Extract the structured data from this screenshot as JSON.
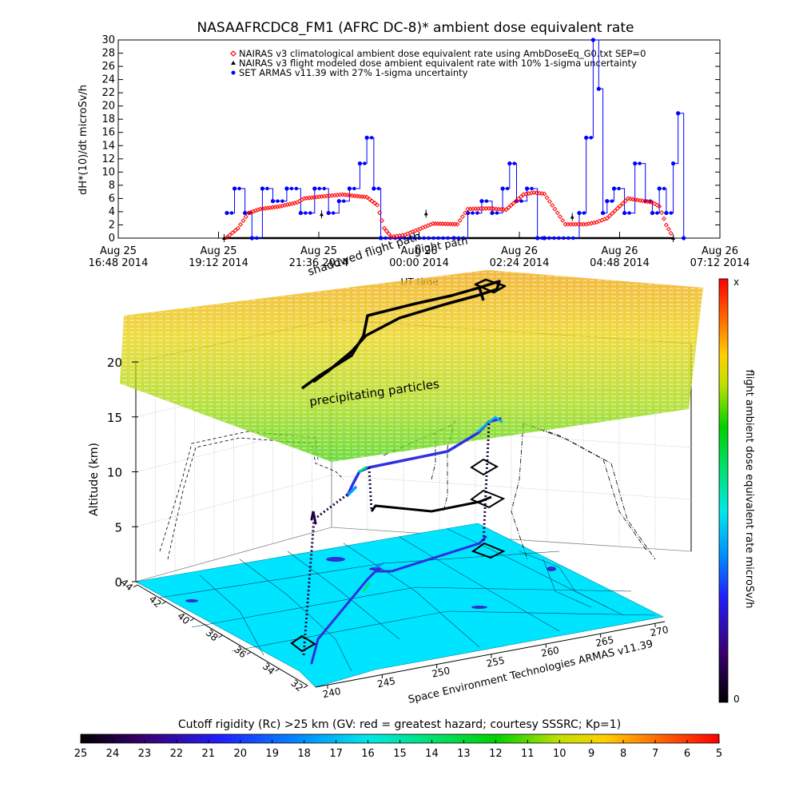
{
  "top_chart": {
    "title": "NASAAFRCDC8_FM1 (AFRC DC-8)* ambient dose equivalent rate",
    "ylabel": "dH*(10)/dt microSv/h",
    "xlabel": "UT time",
    "y_ticks": [
      "0",
      "2",
      "4",
      "6",
      "8",
      "10",
      "12",
      "14",
      "16",
      "18",
      "20",
      "22",
      "24",
      "26",
      "28",
      "30"
    ],
    "x_ticks": [
      {
        "l1": "Aug 25",
        "l2": "16:48 2014"
      },
      {
        "l1": "Aug 25",
        "l2": "19:12 2014"
      },
      {
        "l1": "Aug 25",
        "l2": "21:36 2014"
      },
      {
        "l1": "Aug 26",
        "l2": "00:00 2014"
      },
      {
        "l1": "Aug 26",
        "l2": "02:24 2014"
      },
      {
        "l1": "Aug 26",
        "l2": "04:48 2014"
      },
      {
        "l1": "Aug 26",
        "l2": "07:12 2014"
      }
    ],
    "legend": [
      {
        "label": "NAIRAS v3 climatological ambient dose equivalent rate using AmbDoseEq_G0.txt SEP=0",
        "color": "#ff0000",
        "marker": "diamond"
      },
      {
        "label": "NAIRAS v3 flight modeled dose ambient equivalent rate with 10% 1-sigma uncertainty",
        "color": "#000000",
        "marker": "triangle"
      },
      {
        "label": "SET ARMAS v11.39 with 27% 1-sigma uncertainty",
        "color": "#0000ff",
        "marker": "circle"
      }
    ]
  },
  "chart_data": [
    {
      "type": "scatter",
      "title": "NASAAFRCDC8_FM1 (AFRC DC-8)* ambient dose equivalent rate",
      "xlabel": "UT time",
      "ylabel": "dH*(10)/dt microSv/h",
      "xlim": [
        "2014-08-25 16:48",
        "2014-08-26 07:12"
      ],
      "ylim": [
        0,
        30
      ],
      "legend_position": "top-right",
      "series": [
        {
          "name": "NAIRAS v3 climatological ambient dose equivalent rate using AmbDoseEq_G0.txt SEP=0",
          "color": "#ff0000",
          "x": [
            "2014-08-25 19:24",
            "2014-08-25 19:40",
            "2014-08-25 19:55",
            "2014-08-25 20:12",
            "2014-08-25 20:40",
            "2014-08-25 21:05",
            "2014-08-25 21:15",
            "2014-08-25 21:40",
            "2014-08-25 22:10",
            "2014-08-25 22:45",
            "2014-08-25 23:00",
            "2014-08-25 23:10",
            "2014-08-25 23:20",
            "2014-08-25 23:40",
            "2014-08-26 00:20",
            "2014-08-26 00:55",
            "2014-08-26 01:10",
            "2014-08-26 01:40",
            "2014-08-26 02:05",
            "2014-08-26 02:30",
            "2014-08-26 02:45",
            "2014-08-26 03:00",
            "2014-08-26 03:30",
            "2014-08-26 04:00",
            "2014-08-26 04:15",
            "2014-08-26 04:30",
            "2014-08-26 05:00",
            "2014-08-26 05:35",
            "2014-08-26 05:45",
            "2014-08-26 05:55",
            "2014-08-26 06:05"
          ],
          "y": [
            0.1,
            1.5,
            3.8,
            4.4,
            4.8,
            5.4,
            6.0,
            6.3,
            6.6,
            6.2,
            5.0,
            1.5,
            0.2,
            0.5,
            2.2,
            2.1,
            4.4,
            4.5,
            4.3,
            6.6,
            6.9,
            6.7,
            2.1,
            2.1,
            2.4,
            3.0,
            6.0,
            5.4,
            4.8,
            2.0,
            0.1
          ]
        },
        {
          "name": "NAIRAS v3 flight modeled dose ambient equivalent rate with 10% 1-sigma uncertainty",
          "color": "#000000",
          "x": [
            "2014-08-25 19:20",
            "2014-08-25 21:40",
            "2014-08-26 00:10",
            "2014-08-26 03:40",
            "2014-08-26 06:05"
          ],
          "y": [
            0.0,
            3.6,
            3.7,
            3.2,
            0.0
          ]
        },
        {
          "name": "SET ARMAS v11.39 with 27% 1-sigma uncertainty",
          "color": "#0000ff",
          "x": [
            "2014-08-25 19:24",
            "2014-08-25 19:35",
            "2014-08-25 19:50",
            "2014-08-25 20:00",
            "2014-08-25 20:15",
            "2014-08-25 20:30",
            "2014-08-25 20:50",
            "2014-08-25 21:10",
            "2014-08-25 21:30",
            "2014-08-25 21:50",
            "2014-08-25 22:05",
            "2014-08-25 22:20",
            "2014-08-25 22:35",
            "2014-08-25 22:45",
            "2014-08-25 22:55",
            "2014-08-25 23:05",
            "2014-08-26 00:50",
            "2014-08-26 01:10",
            "2014-08-26 01:30",
            "2014-08-26 01:45",
            "2014-08-26 02:00",
            "2014-08-26 02:10",
            "2014-08-26 02:20",
            "2014-08-26 02:35",
            "2014-08-26 02:50",
            "2014-08-26 03:00",
            "2014-08-26 03:50",
            "2014-08-26 04:00",
            "2014-08-26 04:10",
            "2014-08-26 04:18",
            "2014-08-26 04:24",
            "2014-08-26 04:30",
            "2014-08-26 04:40",
            "2014-08-26 04:55",
            "2014-08-26 05:10",
            "2014-08-26 05:25",
            "2014-08-26 05:35",
            "2014-08-26 05:45",
            "2014-08-26 05:55",
            "2014-08-26 06:05",
            "2014-08-26 06:12",
            "2014-08-26 06:20"
          ],
          "y": [
            3.8,
            7.5,
            3.8,
            0.0,
            7.5,
            5.6,
            7.5,
            3.8,
            7.5,
            3.8,
            5.6,
            7.5,
            11.3,
            15.2,
            7.5,
            0.0,
            0.0,
            3.8,
            5.6,
            3.8,
            7.5,
            11.3,
            5.6,
            7.5,
            0.0,
            0.0,
            3.8,
            15.2,
            30.0,
            22.6,
            3.8,
            5.6,
            7.5,
            3.8,
            11.3,
            5.6,
            3.8,
            7.5,
            3.8,
            11.3,
            18.9,
            0.0
          ]
        }
      ]
    },
    {
      "type": "scatter",
      "title": "",
      "ylabel": "Altitude (km)",
      "xlabel": "Space Environment Technologies ARMAS v11.39",
      "z_ticks": [
        0,
        5,
        10,
        15,
        20
      ],
      "lat_ticks": [
        44,
        42,
        40,
        38,
        36,
        34,
        32
      ],
      "lon_ticks": [
        240,
        245,
        250,
        255,
        260,
        265,
        270
      ],
      "annotations": [
        "precipitating particles",
        "flight path",
        "shadowed flight path"
      ]
    }
  ],
  "plot3d": {
    "zlabel": "Altitude (km)",
    "credit": "Space Environment Technologies ARMAS v11.39",
    "z_ticks": [
      "0",
      "5",
      "10",
      "15",
      "20"
    ],
    "lat_ticks": [
      "44",
      "42",
      "40",
      "38",
      "36",
      "34",
      "32"
    ],
    "lon_ticks": [
      "240",
      "245",
      "250",
      "255",
      "260",
      "265",
      "270"
    ],
    "annotation_precip": "precipitating particles",
    "annotation_flight": "flight path",
    "annotation_shadow": "shadowed flight path"
  },
  "colorbar_right": {
    "label": "flight ambient dose equivalent rate microSv/h",
    "top": "x",
    "bottom": "0"
  },
  "colorbar_bottom": {
    "title": "Cutoff rigidity (Rc) >25 km (GV: red = greatest hazard; courtesy SSSRC; Kp=1)",
    "ticks": [
      "25",
      "24",
      "23",
      "22",
      "21",
      "20",
      "19",
      "18",
      "17",
      "16",
      "15",
      "14",
      "13",
      "12",
      "11",
      "10",
      "9",
      "8",
      "7",
      "6",
      "5"
    ]
  }
}
